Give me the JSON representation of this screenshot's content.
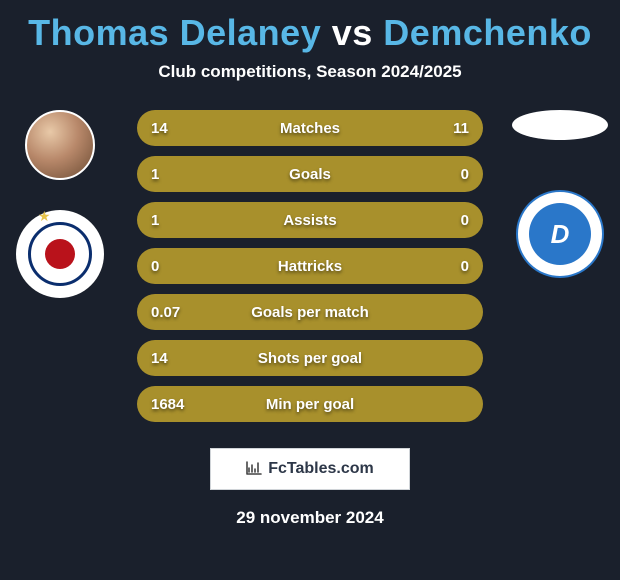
{
  "title": {
    "player1": "Thomas Delaney",
    "vs": "vs",
    "player2": "Demchenko",
    "color_player1": "#58b7e6",
    "color_vs": "#ffffff",
    "color_player2": "#58b7e6"
  },
  "subtitle": "Club competitions, Season 2024/2025",
  "stats": {
    "row_bg": "#a8902c",
    "rows": [
      {
        "label": "Matches",
        "left": "14",
        "right": "11"
      },
      {
        "label": "Goals",
        "left": "1",
        "right": "0"
      },
      {
        "label": "Assists",
        "left": "1",
        "right": "0"
      },
      {
        "label": "Hattricks",
        "left": "0",
        "right": "0"
      },
      {
        "label": "Goals per match",
        "left": "0.07",
        "right": ""
      },
      {
        "label": "Shots per goal",
        "left": "14",
        "right": ""
      },
      {
        "label": "Min per goal",
        "left": "1684",
        "right": ""
      }
    ]
  },
  "attribution": {
    "text": "FcTables.com"
  },
  "date": "29 november 2024",
  "colors": {
    "background": "#1a202c"
  }
}
